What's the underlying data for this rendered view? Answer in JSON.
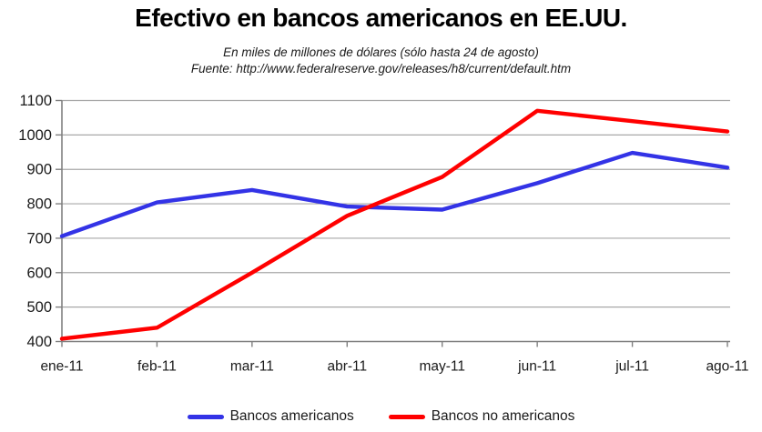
{
  "header": {
    "title": "Efectivo en bancos americanos en EE.UU.",
    "subtitle": "En miles de millones de dólares (sólo hasta 24 de agosto)",
    "source": "Fuente: http://www.federalreserve.gov/releases/h8/current/default.htm"
  },
  "chart_data": {
    "type": "line",
    "title": "Efectivo en bancos americanos en EE.UU.",
    "subtitle": "En miles de millones de dólares (sólo hasta 24 de agosto)",
    "source": "Fuente: http://www.federalreserve.gov/releases/h8/current/default.htm",
    "categories": [
      "ene-11",
      "feb-11",
      "mar-11",
      "abr-11",
      "may-11",
      "jun-11",
      "jul-11",
      "ago-11"
    ],
    "series": [
      {
        "name": "Bancos americanos",
        "color": "#3333E6",
        "values": [
          706,
          804,
          840,
          792,
          783,
          860,
          948,
          905
        ]
      },
      {
        "name": "Bancos no americanos",
        "color": "#FF0000",
        "values": [
          408,
          440,
          600,
          765,
          878,
          1070,
          1040,
          1010
        ]
      }
    ],
    "xlabel": "",
    "ylabel": "",
    "ylim": [
      400,
      1100
    ],
    "y_ticks": [
      400,
      500,
      600,
      700,
      800,
      900,
      1000,
      1100
    ],
    "grid": true,
    "legend_position": "bottom",
    "colors": {
      "gridline": "#A8A8A8",
      "axis": "#808080",
      "tick_text": "#1A1A1A",
      "background": "#FFFFFF"
    }
  },
  "legend": {
    "items": [
      {
        "label": "Bancos americanos"
      },
      {
        "label": "Bancos no americanos"
      }
    ]
  }
}
